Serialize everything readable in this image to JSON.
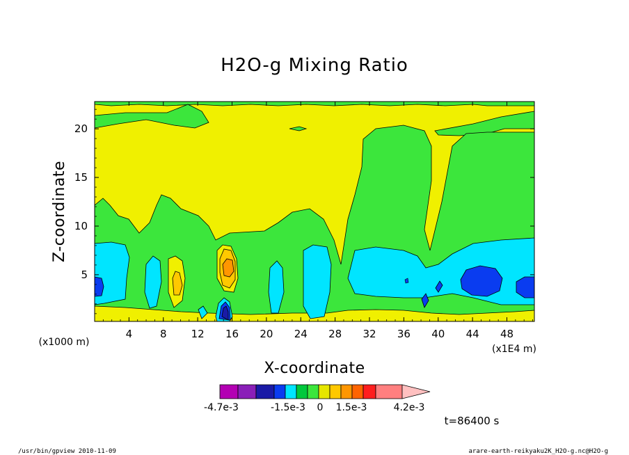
{
  "chart_data": {
    "type": "heatmap",
    "title": "H2O-g Mixing Ratio",
    "xlabel": "X-coordinate",
    "ylabel": "Z-coordinate",
    "x_unit_label": "(x1E4 m)",
    "y_unit_label": "(x1000 m)",
    "x_ticks": [
      "4",
      "8",
      "12",
      "16",
      "20",
      "24",
      "28",
      "32",
      "36",
      "40",
      "44",
      "48"
    ],
    "y_ticks": [
      "5",
      "10",
      "15",
      "20"
    ],
    "xlim": [
      0,
      51.2
    ],
    "ylim": [
      0.2,
      22.8
    ],
    "time_label": "t=86400 s",
    "colorbar": {
      "levels": [
        -0.0047,
        -0.0039,
        -0.0031,
        -0.0023,
        -0.0015,
        -0.0007,
        0,
        0.0007,
        0.0015,
        0.0023,
        0.0031,
        0.0039,
        0.0042
      ],
      "colors": [
        "#b300b3",
        "#8a1fb8",
        "#1a1aa6",
        "#0a3cf0",
        "#00e5ff",
        "#00c83c",
        "#3ce63c",
        "#e6e600",
        "#ffc800",
        "#ff9600",
        "#ff6400",
        "#ff1e1e",
        "#ff7f7f",
        "#ffc0c0"
      ],
      "tick_labels": [
        "-4.7e-3",
        "-1.5e-3",
        "0",
        "1.5e-3",
        "4.2e-3"
      ]
    },
    "regions": [
      {
        "level": "0 to 0.7e-3",
        "color": "#e6e600",
        "extent": "background upper domain z=12-20"
      },
      {
        "level": "-0.7e-3 to 0",
        "color": "#3ce63c",
        "extent": "lower band z=0-13, right column x=30-51 z=0-20"
      },
      {
        "level": "-1.5e-3 to -0.7e-3",
        "color": "#00e5ff",
        "extent": "moist pockets z=1-8"
      },
      {
        "level": "< -2.3e-3",
        "color": "#0a3cf0",
        "extent": "x=0-1 z=4, x=15 z=1, x=42-47 z=4, x=50-51 z=4"
      },
      {
        "level": "1.5e-3 to 2.3e-3",
        "color": "#ffc800",
        "extent": "x=15-16 z=5-7, x=9-10 z=4"
      }
    ]
  },
  "footer": {
    "left": "/usr/bin/gpview   2010-11-09",
    "right": "arare-earth-reikyaku2K_H2O-g.nc@H2O-g"
  }
}
